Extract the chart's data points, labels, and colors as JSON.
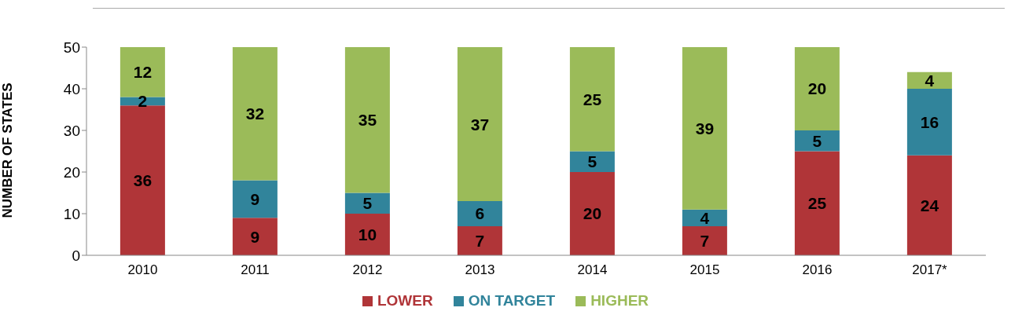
{
  "chart_data": {
    "type": "bar",
    "stacked": true,
    "ylabel": "NUMBER OF STATES",
    "categories": [
      "2010",
      "2011",
      "2012",
      "2013",
      "2014",
      "2015",
      "2016",
      "2017*"
    ],
    "series": [
      {
        "name": "LOWER",
        "color": "#b03538",
        "values": [
          36,
          9,
          10,
          7,
          20,
          7,
          25,
          24
        ]
      },
      {
        "name": "ON TARGET",
        "color": "#31849b",
        "values": [
          2,
          9,
          5,
          6,
          5,
          4,
          5,
          16
        ]
      },
      {
        "name": "HIGHER",
        "color": "#9bbb59",
        "values": [
          12,
          32,
          35,
          37,
          25,
          39,
          20,
          4
        ]
      }
    ],
    "ylim": [
      0,
      50
    ],
    "yticks": [
      0,
      10,
      20,
      30,
      40,
      50
    ],
    "legend": "bottom",
    "data_labels": true
  }
}
